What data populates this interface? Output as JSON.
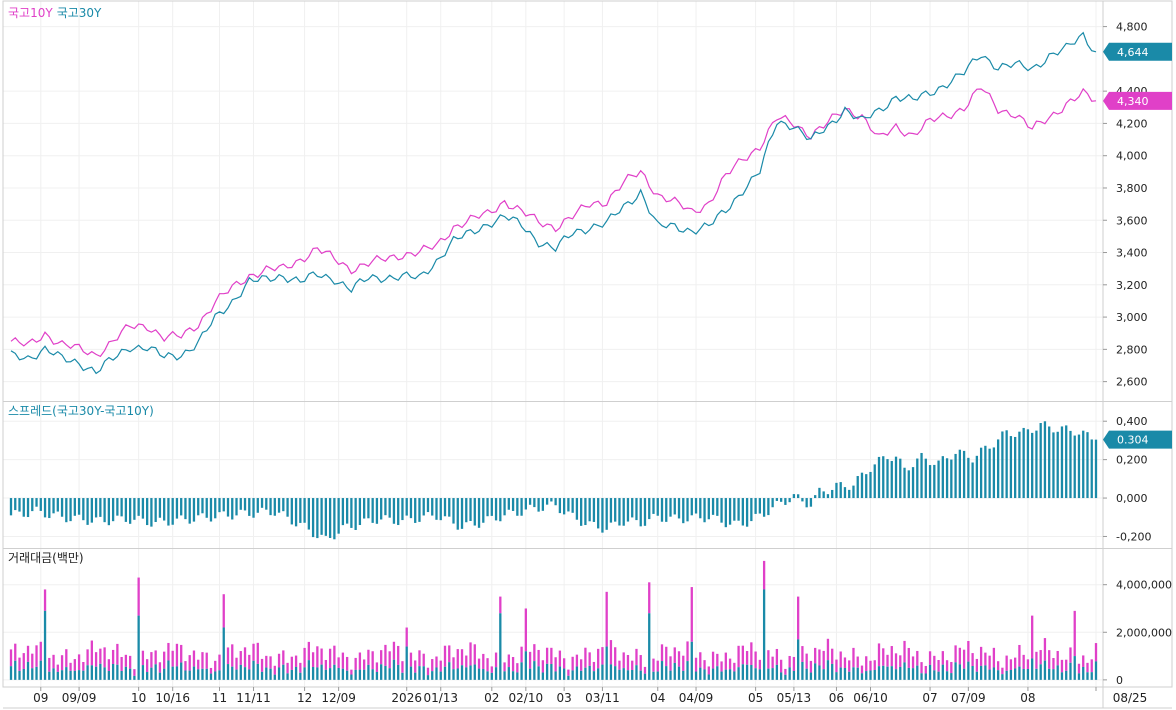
{
  "chart_data": [
    {
      "type": "line",
      "panel": "price",
      "legend": [
        "국고10Y",
        "국고30Y"
      ],
      "series": [
        {
          "name": "국고10Y",
          "color": "#e040c8",
          "last_label": "4,340",
          "anchors": [
            [
              0,
              2850
            ],
            [
              4,
              2820
            ],
            [
              8,
              2900
            ],
            [
              12,
              2830
            ],
            [
              16,
              2800
            ],
            [
              20,
              2770
            ],
            [
              24,
              2850
            ],
            [
              28,
              2940
            ],
            [
              32,
              2950
            ],
            [
              36,
              2870
            ],
            [
              40,
              2880
            ],
            [
              44,
              2960
            ],
            [
              48,
              3090
            ],
            [
              52,
              3180
            ],
            [
              56,
              3260
            ],
            [
              60,
              3290
            ],
            [
              64,
              3300
            ],
            [
              68,
              3360
            ],
            [
              72,
              3420
            ],
            [
              76,
              3360
            ],
            [
              80,
              3300
            ],
            [
              84,
              3330
            ],
            [
              88,
              3360
            ],
            [
              92,
              3390
            ],
            [
              96,
              3400
            ],
            [
              100,
              3440
            ],
            [
              104,
              3560
            ],
            [
              108,
              3600
            ],
            [
              112,
              3640
            ],
            [
              116,
              3720
            ],
            [
              120,
              3650
            ],
            [
              124,
              3590
            ],
            [
              128,
              3560
            ],
            [
              132,
              3620
            ],
            [
              136,
              3700
            ],
            [
              140,
              3720
            ],
            [
              144,
              3830
            ],
            [
              148,
              3900
            ],
            [
              152,
              3760
            ],
            [
              156,
              3710
            ],
            [
              160,
              3650
            ],
            [
              164,
              3710
            ],
            [
              168,
              3870
            ],
            [
              172,
              3980
            ],
            [
              176,
              4060
            ],
            [
              180,
              4230
            ],
            [
              184,
              4200
            ],
            [
              188,
              4130
            ],
            [
              192,
              4200
            ],
            [
              196,
              4290
            ],
            [
              200,
              4250
            ],
            [
              204,
              4100
            ],
            [
              208,
              4180
            ],
            [
              212,
              4130
            ],
            [
              216,
              4210
            ],
            [
              220,
              4250
            ],
            [
              224,
              4300
            ],
            [
              228,
              4420
            ],
            [
              232,
              4290
            ],
            [
              236,
              4260
            ],
            [
              240,
              4160
            ],
            [
              244,
              4240
            ],
            [
              248,
              4320
            ],
            [
              252,
              4380
            ],
            [
              255,
              4340
            ]
          ]
        },
        {
          "name": "국고30Y",
          "color": "#1a8aa8",
          "last_label": "4,644",
          "anchors": [
            [
              0,
              2760
            ],
            [
              4,
              2750
            ],
            [
              8,
              2800
            ],
            [
              12,
              2740
            ],
            [
              16,
              2720
            ],
            [
              20,
              2660
            ],
            [
              24,
              2740
            ],
            [
              28,
              2820
            ],
            [
              32,
              2810
            ],
            [
              36,
              2750
            ],
            [
              40,
              2770
            ],
            [
              44,
              2840
            ],
            [
              48,
              2990
            ],
            [
              52,
              3100
            ],
            [
              56,
              3220
            ],
            [
              60,
              3230
            ],
            [
              64,
              3260
            ],
            [
              68,
              3220
            ],
            [
              72,
              3260
            ],
            [
              76,
              3240
            ],
            [
              80,
              3170
            ],
            [
              84,
              3240
            ],
            [
              88,
              3250
            ],
            [
              92,
              3250
            ],
            [
              96,
              3240
            ],
            [
              100,
              3350
            ],
            [
              104,
              3470
            ],
            [
              108,
              3520
            ],
            [
              112,
              3580
            ],
            [
              116,
              3620
            ],
            [
              120,
              3570
            ],
            [
              124,
              3470
            ],
            [
              128,
              3420
            ],
            [
              132,
              3520
            ],
            [
              136,
              3560
            ],
            [
              140,
              3580
            ],
            [
              144,
              3680
            ],
            [
              148,
              3780
            ],
            [
              152,
              3560
            ],
            [
              156,
              3560
            ],
            [
              160,
              3540
            ],
            [
              164,
              3560
            ],
            [
              168,
              3660
            ],
            [
              172,
              3790
            ],
            [
              176,
              3900
            ],
            [
              180,
              4210
            ],
            [
              184,
              4190
            ],
            [
              188,
              4090
            ],
            [
              192,
              4180
            ],
            [
              196,
              4290
            ],
            [
              200,
              4210
            ],
            [
              204,
              4280
            ],
            [
              208,
              4370
            ],
            [
              212,
              4340
            ],
            [
              216,
              4390
            ],
            [
              220,
              4450
            ],
            [
              224,
              4510
            ],
            [
              228,
              4630
            ],
            [
              232,
              4550
            ],
            [
              236,
              4560
            ],
            [
              240,
              4540
            ],
            [
              244,
              4620
            ],
            [
              248,
              4660
            ],
            [
              252,
              4750
            ],
            [
              255,
              4644
            ]
          ]
        }
      ],
      "ylim": [
        2480,
        4940
      ],
      "yticks": [
        {
          "v": 2600,
          "label": "2,600"
        },
        {
          "v": 2800,
          "label": "2,800"
        },
        {
          "v": 3000,
          "label": "3,000"
        },
        {
          "v": 3200,
          "label": "3,200"
        },
        {
          "v": 3400,
          "label": "3,400"
        },
        {
          "v": 3600,
          "label": "3,600"
        },
        {
          "v": 3800,
          "label": "3,800"
        },
        {
          "v": 4000,
          "label": "4,000"
        },
        {
          "v": 4200,
          "label": "4,200"
        },
        {
          "v": 4400,
          "label": "4,400"
        },
        {
          "v": 4800,
          "label": "4,800"
        }
      ]
    },
    {
      "type": "bar",
      "panel": "spread",
      "legend": "스프레드(국고30Y-국고10Y)",
      "color": "#1a8aa8",
      "last_label": "0.304",
      "anchors": [
        [
          0,
          -0.09
        ],
        [
          6,
          -0.07
        ],
        [
          12,
          -0.1
        ],
        [
          20,
          -0.12
        ],
        [
          28,
          -0.11
        ],
        [
          34,
          -0.13
        ],
        [
          42,
          -0.11
        ],
        [
          50,
          -0.09
        ],
        [
          56,
          -0.08
        ],
        [
          62,
          -0.07
        ],
        [
          68,
          -0.14
        ],
        [
          74,
          -0.22
        ],
        [
          78,
          -0.16
        ],
        [
          86,
          -0.11
        ],
        [
          92,
          -0.12
        ],
        [
          100,
          -0.09
        ],
        [
          106,
          -0.15
        ],
        [
          110,
          -0.13
        ],
        [
          116,
          -0.09
        ],
        [
          120,
          -0.07
        ],
        [
          124,
          -0.05
        ],
        [
          128,
          -0.04
        ],
        [
          132,
          -0.1
        ],
        [
          136,
          -0.14
        ],
        [
          140,
          -0.16
        ],
        [
          144,
          -0.12
        ],
        [
          148,
          -0.13
        ],
        [
          152,
          -0.1
        ],
        [
          156,
          -0.11
        ],
        [
          164,
          -0.1
        ],
        [
          170,
          -0.14
        ],
        [
          174,
          -0.12
        ],
        [
          180,
          -0.04
        ],
        [
          184,
          0.01
        ],
        [
          186,
          -0.02
        ],
        [
          188,
          -0.03
        ],
        [
          190,
          0.03
        ],
        [
          194,
          0.06
        ],
        [
          198,
          0.07
        ],
        [
          202,
          0.16
        ],
        [
          206,
          0.22
        ],
        [
          208,
          0.21
        ],
        [
          210,
          0.15
        ],
        [
          214,
          0.21
        ],
        [
          218,
          0.18
        ],
        [
          222,
          0.24
        ],
        [
          226,
          0.21
        ],
        [
          230,
          0.27
        ],
        [
          234,
          0.34
        ],
        [
          238,
          0.34
        ],
        [
          242,
          0.38
        ],
        [
          246,
          0.36
        ],
        [
          250,
          0.35
        ],
        [
          255,
          0.304
        ]
      ],
      "ylim": [
        -0.26,
        0.5
      ],
      "yticks": [
        {
          "v": -0.2,
          "label": "-0,200"
        },
        {
          "v": 0,
          "label": "0,000"
        },
        {
          "v": 0.2,
          "label": "0,200"
        },
        {
          "v": 0.4,
          "label": "0,400"
        }
      ]
    },
    {
      "type": "bar",
      "panel": "volume",
      "legend": "거래대금(백만)",
      "series": [
        {
          "name": "국고10Y",
          "color": "#e040c8"
        },
        {
          "name": "국고30Y",
          "color": "#1a8aa8"
        }
      ],
      "spikes": [
        [
          8,
          3800000,
          2900000
        ],
        [
          30,
          4300000,
          2700000
        ],
        [
          50,
          3600000,
          2200000
        ],
        [
          93,
          2200000,
          1400000
        ],
        [
          115,
          3500000,
          2800000
        ],
        [
          121,
          3000000,
          1200000
        ],
        [
          140,
          3700000,
          1400000
        ],
        [
          150,
          4100000,
          2800000
        ],
        [
          160,
          3900000,
          1600000
        ],
        [
          177,
          5000000,
          3800000
        ],
        [
          185,
          3500000,
          1700000
        ],
        [
          240,
          2700000,
          900000
        ],
        [
          250,
          2900000,
          1000000
        ]
      ],
      "ylim": [
        -300000,
        5500000
      ],
      "yticks": [
        {
          "v": 0,
          "label": "0"
        },
        {
          "v": 2000000,
          "label": "2,000,000"
        },
        {
          "v": 4000000,
          "label": "4,000,000"
        }
      ]
    }
  ],
  "x_axis": {
    "count": 256,
    "labels": [
      {
        "i": 7,
        "label": "09"
      },
      {
        "i": 16,
        "label": "09/09"
      },
      {
        "i": 30,
        "label": "10"
      },
      {
        "i": 38,
        "label": "10/16"
      },
      {
        "i": 49,
        "label": "11"
      },
      {
        "i": 57,
        "label": "11/11"
      },
      {
        "i": 69,
        "label": "12"
      },
      {
        "i": 77,
        "label": "12/09"
      },
      {
        "i": 93,
        "label": "2026"
      },
      {
        "i": 101,
        "label": "01/13"
      },
      {
        "i": 113,
        "label": "02"
      },
      {
        "i": 121,
        "label": "02/10"
      },
      {
        "i": 130,
        "label": "03"
      },
      {
        "i": 139,
        "label": "03/11"
      },
      {
        "i": 152,
        "label": "04"
      },
      {
        "i": 161,
        "label": "04/09"
      },
      {
        "i": 175,
        "label": "05"
      },
      {
        "i": 184,
        "label": "05/13"
      },
      {
        "i": 194,
        "label": "06"
      },
      {
        "i": 202,
        "label": "06/10"
      },
      {
        "i": 216,
        "label": "07"
      },
      {
        "i": 225,
        "label": "07/09"
      },
      {
        "i": 239,
        "label": "08"
      },
      {
        "i": 255,
        "label": "08/25"
      }
    ]
  }
}
